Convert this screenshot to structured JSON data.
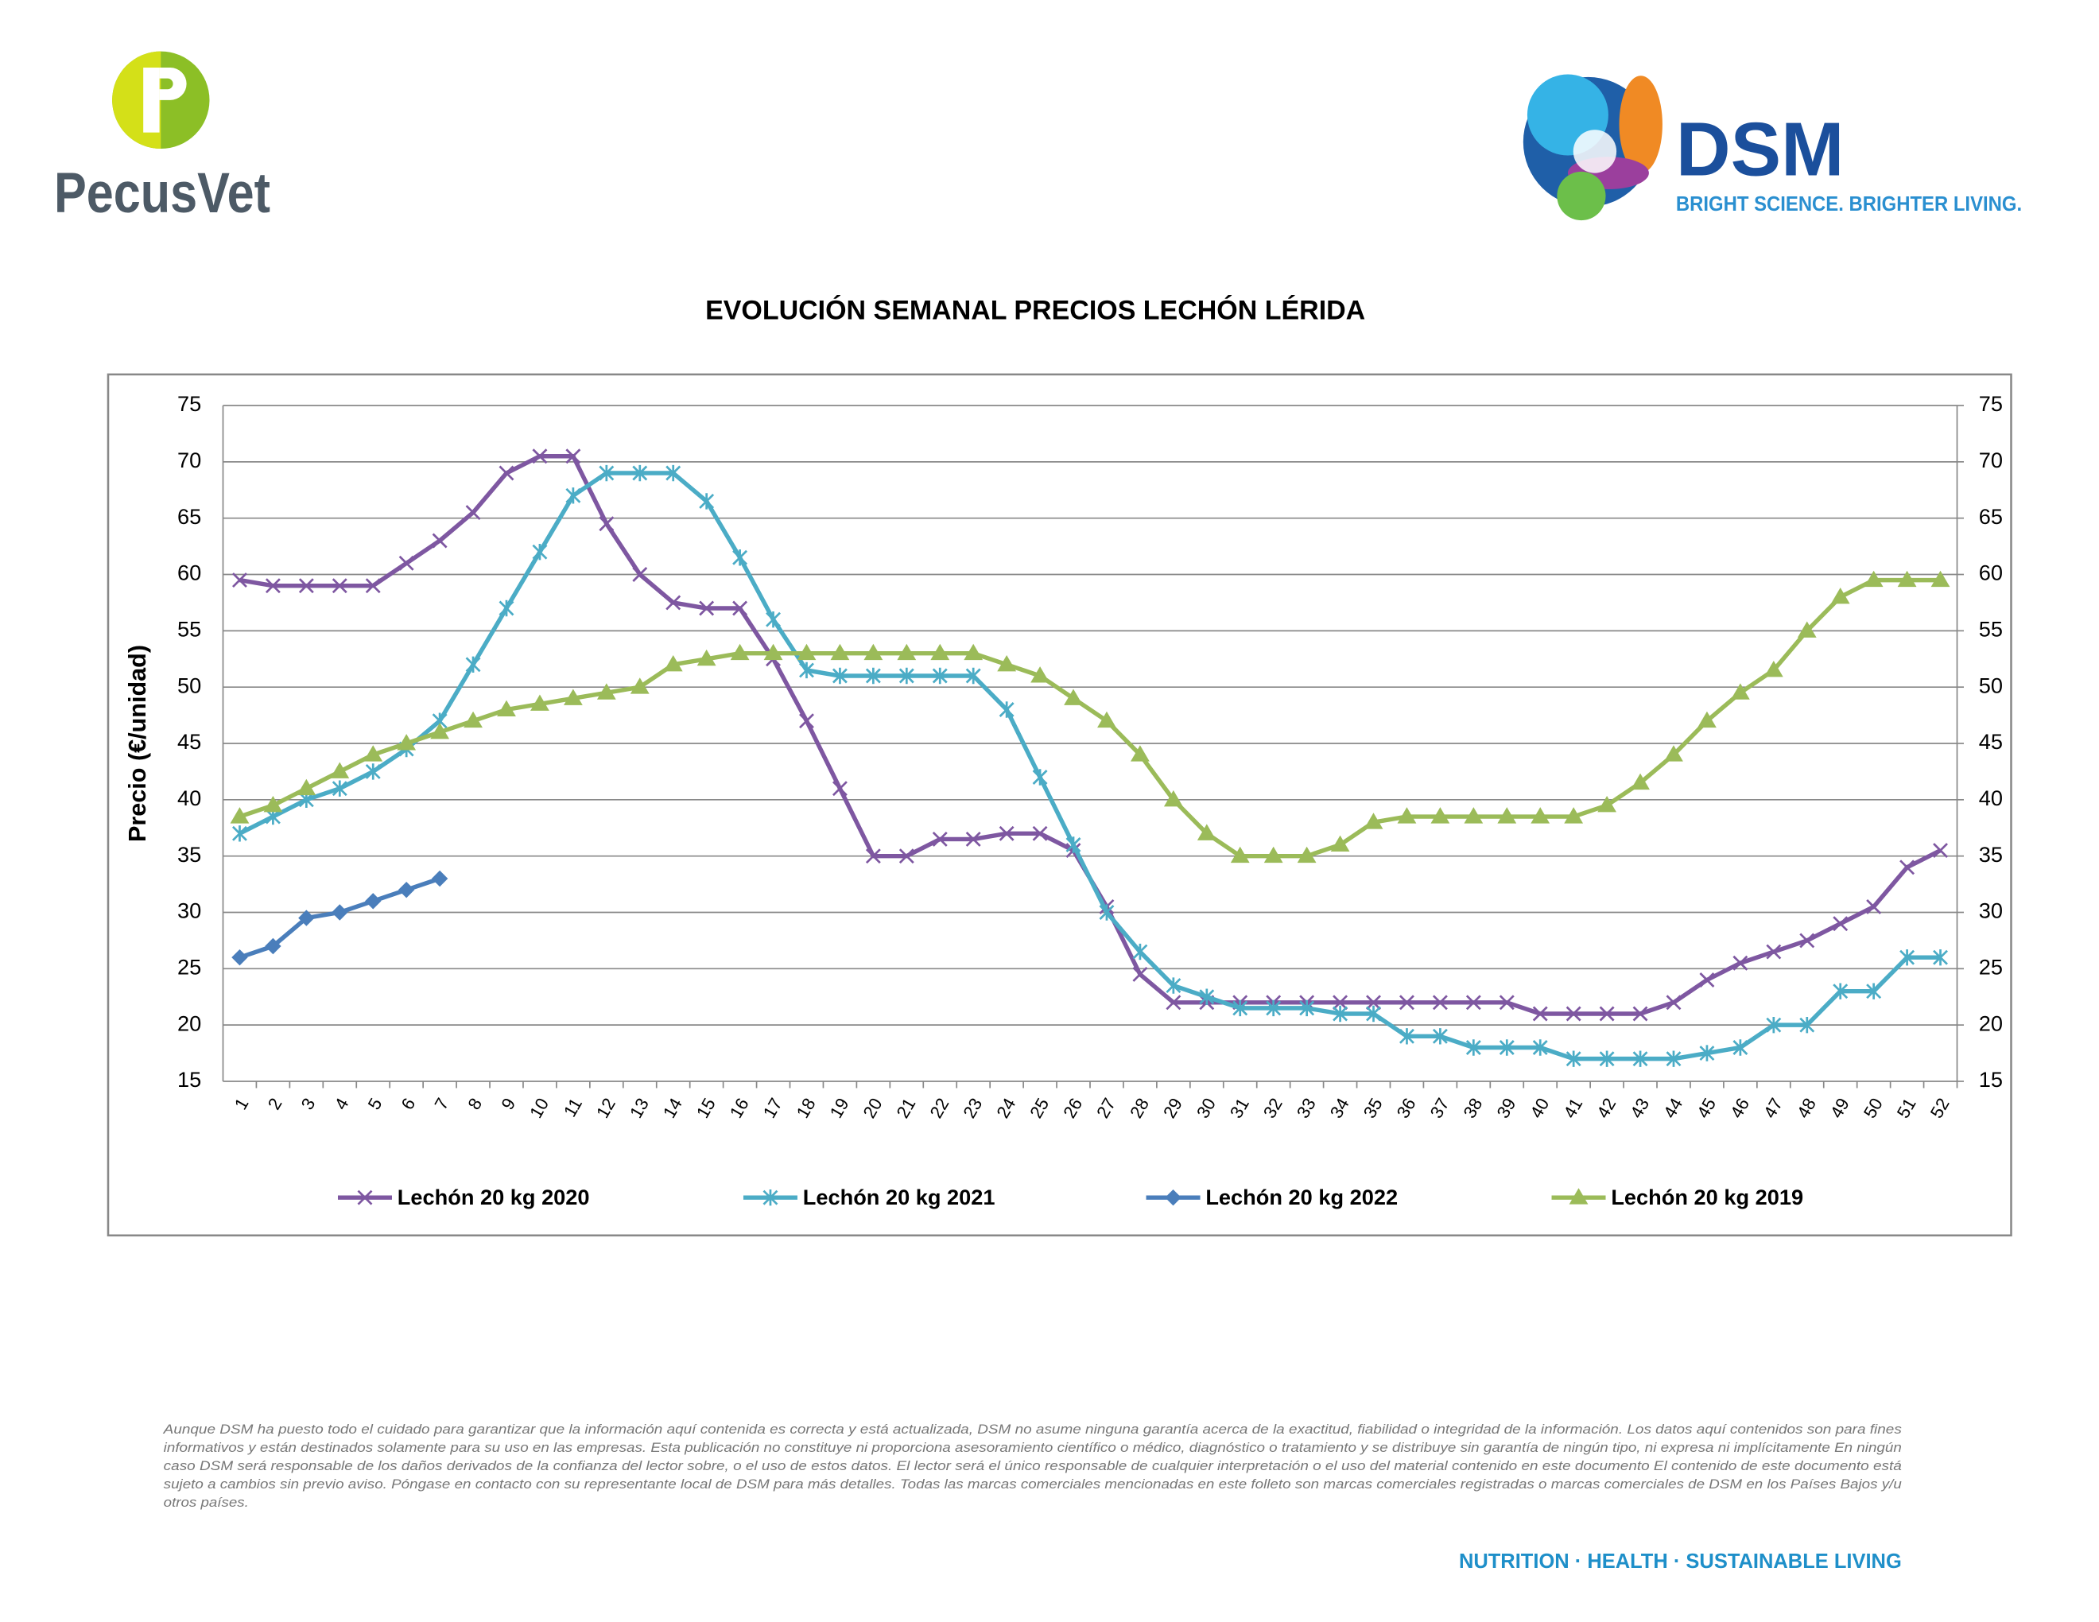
{
  "header": {
    "left_logo": "PecusVet",
    "right_logo": "DSM",
    "right_tagline": "BRIGHT SCIENCE. BRIGHTER LIVING."
  },
  "chart_data": {
    "type": "line",
    "title": "EVOLUCIÓN SEMANAL PRECIOS LECHÓN LÉRIDA",
    "y_label": "Precio (€/unidad)",
    "categories": [
      "1",
      "2",
      "3",
      "4",
      "5",
      "6",
      "7",
      "8",
      "9",
      "10",
      "11",
      "12",
      "13",
      "14",
      "15",
      "16",
      "17",
      "18",
      "19",
      "20",
      "21",
      "22",
      "23",
      "24",
      "25",
      "26",
      "27",
      "28",
      "29",
      "30",
      "31",
      "32",
      "33",
      "34",
      "35",
      "36",
      "37",
      "38",
      "39",
      "40",
      "41",
      "42",
      "43",
      "44",
      "45",
      "46",
      "47",
      "48",
      "49",
      "50",
      "51",
      "52"
    ],
    "ylim": [
      15,
      75
    ],
    "yticks": [
      15,
      20,
      25,
      30,
      35,
      40,
      45,
      50,
      55,
      60,
      65,
      70,
      75
    ],
    "y2lim": [
      15,
      75
    ],
    "y2ticks": [
      15,
      20,
      25,
      30,
      35,
      40,
      45,
      50,
      55,
      60,
      65,
      70,
      75
    ],
    "grid": true,
    "legend": "bottom",
    "series": [
      {
        "name": "Lechón 20 kg 2020",
        "color": "#7e57a1",
        "marker": "x",
        "values": [
          59.5,
          59,
          59,
          59,
          59,
          61,
          63,
          65.5,
          69,
          70.5,
          70.5,
          64.5,
          60,
          57.5,
          57,
          57,
          52.5,
          47,
          41,
          35,
          35,
          36.5,
          36.5,
          37,
          37,
          35.5,
          30.5,
          24.5,
          22,
          22,
          22,
          22,
          22,
          22,
          22,
          22,
          22,
          22,
          22,
          21,
          21,
          21,
          21,
          22,
          24,
          25.5,
          26.5,
          27.5,
          29,
          30.5,
          34,
          35.5
        ]
      },
      {
        "name": "Lechón 20 kg 2021",
        "color": "#4bacc6",
        "marker": "star",
        "values": [
          37,
          38.5,
          40,
          41,
          42.5,
          44.5,
          47,
          52,
          57,
          62,
          67,
          69,
          69,
          69,
          66.5,
          61.5,
          56,
          51.5,
          51,
          51,
          51,
          51,
          51,
          48,
          42,
          36,
          30,
          26.5,
          23.5,
          22.5,
          21.5,
          21.5,
          21.5,
          21,
          21,
          19,
          19,
          18,
          18,
          18,
          17,
          17,
          17,
          17,
          17.5,
          18,
          20,
          20,
          23,
          23,
          26,
          26
        ]
      },
      {
        "name": "Lechón 20 kg 2022",
        "color": "#4a7ebb",
        "marker": "diamond",
        "values": [
          26,
          27,
          29.5,
          30,
          31,
          32,
          33,
          null,
          null,
          null,
          null,
          null,
          null,
          null,
          null,
          null,
          null,
          null,
          null,
          null,
          null,
          null,
          null,
          null,
          null,
          null,
          null,
          null,
          null,
          null,
          null,
          null,
          null,
          null,
          null,
          null,
          null,
          null,
          null,
          null,
          null,
          null,
          null,
          null,
          null,
          null,
          null,
          null,
          null,
          null,
          null,
          null
        ]
      },
      {
        "name": "Lechón 20 kg 2019",
        "color": "#9bbb59",
        "marker": "triangle",
        "values": [
          38.5,
          39.5,
          41,
          42.5,
          44,
          45,
          46,
          47,
          48,
          48.5,
          49,
          49.5,
          50,
          52,
          52.5,
          53,
          53,
          53,
          53,
          53,
          53,
          53,
          53,
          52,
          51,
          49,
          47,
          44,
          40,
          37,
          35,
          35,
          35,
          36,
          38,
          38.5,
          38.5,
          38.5,
          38.5,
          38.5,
          38.5,
          39.5,
          41.5,
          44,
          47,
          49.5,
          51.5,
          55,
          58,
          59.5,
          59.5,
          59.5
        ]
      }
    ]
  },
  "disclaimer": [
    "Aunque DSM ha puesto todo el cuidado para garantizar que la información aquí contenida es correcta y está actualizada, DSM no asume ninguna garantía acerca de la exactitud, fiabilidad o integridad de la información. Los datos aquí contenidos son para fines",
    "informativos y están destinados solamente para su uso en las empresas. Esta publicación no constituye ni proporciona asesoramiento científico o médico, diagnóstico o tratamiento y se distribuye sin garantía de ningún tipo, ni expresa ni implícitamente En ningún",
    "caso DSM será responsable de los daños derivados de la confianza del lector sobre, o el uso de estos datos. El lector será el único responsable de cualquier interpretación o el uso del material contenido en este documento El contenido de este documento está",
    "sujeto a cambios sin previo aviso. Póngase en contacto con su representante local de DSM para más detalles. Todas las marcas comerciales mencionadas en este folleto son marcas comerciales registradas o marcas comerciales de DSM en los Países Bajos y/u",
    "otros países."
  ],
  "footer": "NUTRITION · HEALTH · SUSTAINABLE LIVING"
}
